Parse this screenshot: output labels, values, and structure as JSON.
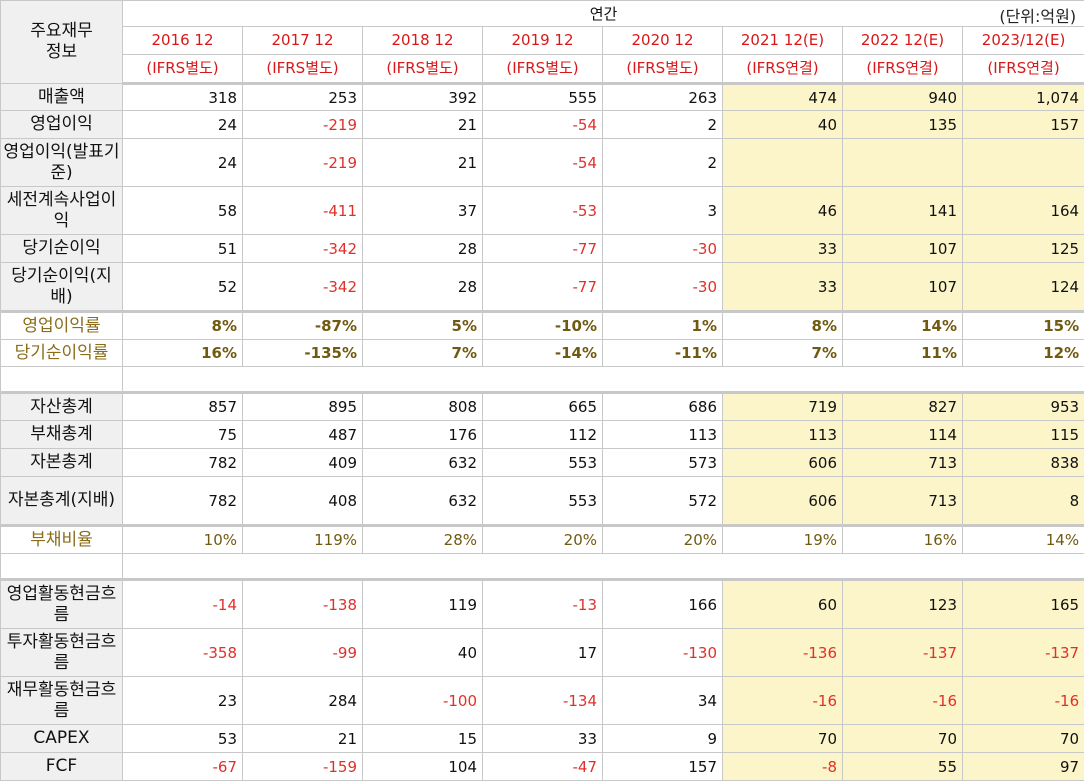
{
  "header": {
    "title_line1": "주요재무",
    "title_line2": "정보",
    "annual_label": "연간",
    "unit_label": "(단위:억원)",
    "periods": [
      {
        "year": "2016 12",
        "basis": "(IFRS별도)"
      },
      {
        "year": "2017 12",
        "basis": "(IFRS별도)"
      },
      {
        "year": "2018 12",
        "basis": "(IFRS별도)"
      },
      {
        "year": "2019 12",
        "basis": "(IFRS별도)"
      },
      {
        "year": "2020 12",
        "basis": "(IFRS별도)"
      },
      {
        "year": "2021 12(E)",
        "basis": "(IFRS연결)"
      },
      {
        "year": "2022 12(E)",
        "basis": "(IFRS연결)"
      },
      {
        "year": "2023/12(E)",
        "basis": "(IFRS연결)"
      }
    ]
  },
  "rows": [
    {
      "label": "매출액",
      "values": [
        "318",
        "253",
        "392",
        "555",
        "263",
        "474",
        "940",
        "1,074"
      ],
      "h": 26
    },
    {
      "label": "영업이익",
      "values": [
        "24",
        "-219",
        "21",
        "-54",
        "2",
        "40",
        "135",
        "157"
      ],
      "h": 27
    },
    {
      "label": "영업이익(발표기준)",
      "values": [
        "24",
        "-219",
        "21",
        "-54",
        "2",
        "",
        "",
        ""
      ],
      "h": 47
    },
    {
      "label": "세전계속사업이익",
      "values": [
        "58",
        "-411",
        "37",
        "-53",
        "3",
        "46",
        "141",
        "164"
      ],
      "h": 47
    },
    {
      "label": "당기순이익",
      "values": [
        "51",
        "-342",
        "28",
        "-77",
        "-30",
        "33",
        "107",
        "125"
      ],
      "h": 27
    },
    {
      "label": "당기순이익(지배)",
      "values": [
        "52",
        "-342",
        "28",
        "-77",
        "-30",
        "33",
        "107",
        "124"
      ],
      "h": 47
    }
  ],
  "ratio_rows_1": [
    {
      "label": "영업이익률",
      "values": [
        "8%",
        "-87%",
        "5%",
        "-10%",
        "1%",
        "8%",
        "14%",
        "15%"
      ]
    },
    {
      "label": "당기순이익률",
      "values": [
        "16%",
        "-135%",
        "7%",
        "-14%",
        "-11%",
        "7%",
        "11%",
        "12%"
      ]
    }
  ],
  "balance_rows": [
    {
      "label": "자산총계",
      "values": [
        "857",
        "895",
        "808",
        "665",
        "686",
        "719",
        "827",
        "953"
      ],
      "h": 26
    },
    {
      "label": "부채총계",
      "values": [
        "75",
        "487",
        "176",
        "112",
        "113",
        "113",
        "114",
        "115"
      ],
      "h": 27
    },
    {
      "label": "자본총계",
      "values": [
        "782",
        "409",
        "632",
        "553",
        "573",
        "606",
        "713",
        "838"
      ],
      "h": 27
    },
    {
      "label": "자본총계(지배)",
      "values": [
        "782",
        "408",
        "632",
        "553",
        "572",
        "606",
        "713",
        "8"
      ],
      "h": 47
    }
  ],
  "ratio_rows_2": [
    {
      "label": "부채비율",
      "values": [
        "10%",
        "119%",
        "28%",
        "20%",
        "20%",
        "19%",
        "16%",
        "14%"
      ]
    }
  ],
  "cash_rows": [
    {
      "label": "영업활동현금흐름",
      "values": [
        "-14",
        "-138",
        "119",
        "-13",
        "166",
        "60",
        "123",
        "165"
      ],
      "h": 47
    },
    {
      "label": "투자활동현금흐름",
      "values": [
        "-358",
        "-99",
        "40",
        "17",
        "-130",
        "-136",
        "-137",
        "-137"
      ],
      "h": 47
    },
    {
      "label": "재무활동현금흐름",
      "values": [
        "23",
        "284",
        "-100",
        "-134",
        "34",
        "-16",
        "-16",
        "-16"
      ],
      "h": 47
    },
    {
      "label": "CAPEX",
      "values": [
        "53",
        "21",
        "15",
        "33",
        "9",
        "70",
        "70",
        "70"
      ],
      "h": 27
    },
    {
      "label": "FCF",
      "values": [
        "-67",
        "-159",
        "104",
        "-47",
        "157",
        "-8",
        "55",
        "97"
      ],
      "h": 27
    }
  ],
  "colors": {
    "estimate_bg": "#fcf5c9",
    "negative": "#e0302a",
    "header_year": "#d81818"
  }
}
